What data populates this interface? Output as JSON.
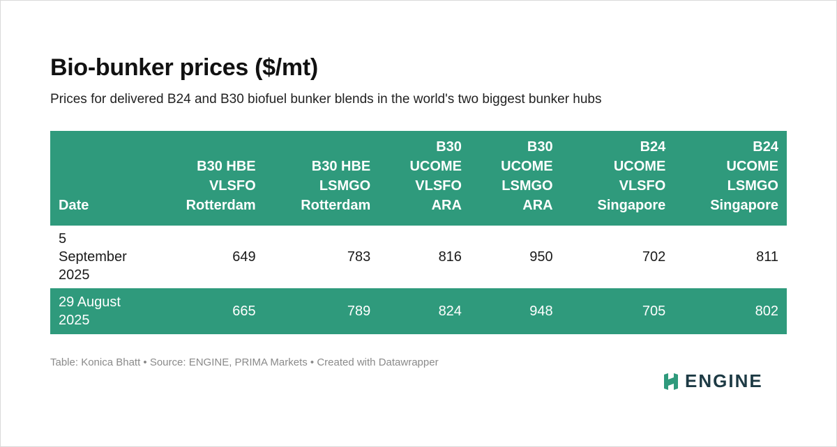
{
  "chart_data": {
    "type": "table",
    "title": "Bio-bunker prices ($/mt)",
    "subtitle": "Prices for delivered B24 and B30 biofuel bunker blends in the world's two biggest bunker hubs",
    "columns": [
      [
        "Date"
      ],
      [
        "B30 HBE",
        "VLSFO",
        "Rotterdam"
      ],
      [
        "B30 HBE",
        "LSMGO",
        "Rotterdam"
      ],
      [
        "B30",
        "UCOME",
        "VLSFO",
        "ARA"
      ],
      [
        "B30",
        "UCOME",
        "LSMGO",
        "ARA"
      ],
      [
        "B24",
        "UCOME",
        "VLSFO",
        "Singapore"
      ],
      [
        "B24",
        "UCOME",
        "LSMGO",
        "Singapore"
      ]
    ],
    "rows": [
      {
        "date": [
          "5",
          "September",
          "2025"
        ],
        "values": [
          "649",
          "783",
          "816",
          "950",
          "702",
          "811"
        ]
      },
      {
        "date": [
          "29 August",
          "2025"
        ],
        "values": [
          "665",
          "789",
          "824",
          "948",
          "705",
          "802"
        ]
      }
    ],
    "colors": {
      "header_bg": "#2f9a7c",
      "header_text": "#ffffff",
      "logo": "#1d3a44",
      "logo_mark": "#2f9a7c"
    }
  },
  "footer": "Table: Konica Bhatt • Source: ENGINE, PRIMA Markets • Created with Datawrapper",
  "logo": {
    "icon": "engine-logo-icon",
    "text": "ENGINE"
  }
}
